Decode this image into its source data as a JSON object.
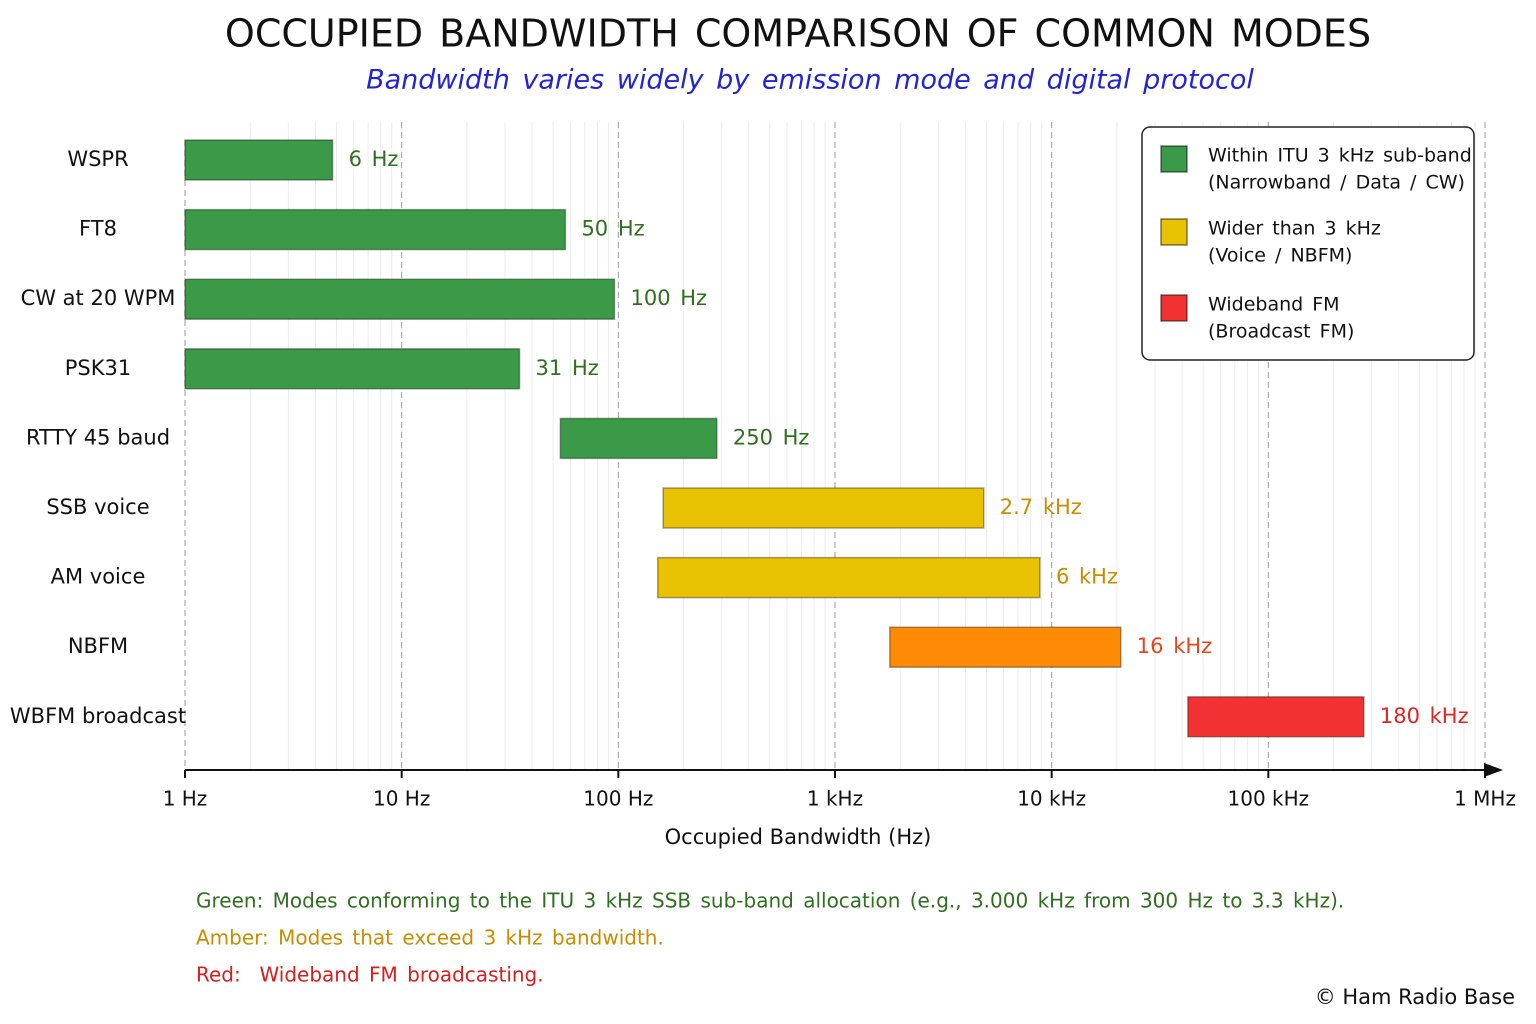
{
  "chart_data": {
    "type": "floating_bar",
    "title": "OCCUPIED BANDWIDTH COMPARISON OF COMMON MODES",
    "subtitle": "Bandwidth varies widely by emission mode and digital protocol",
    "x_label": "Occupied Bandwidth (Hz)",
    "log_x": true,
    "grid": true,
    "categories": [
      "WSPR",
      "FT8",
      "CW at 20 WPM",
      "PSK31",
      "RTTY 45 baud",
      "SSB voice",
      "AM voice",
      "NBFM",
      "WBFM broadcast"
    ],
    "low": [
      1,
      1,
      1,
      1,
      54,
      161,
      152,
      1790,
      42500
    ],
    "high": [
      4.8,
      57,
      96,
      35,
      285,
      4860,
      8830,
      20850,
      276000
    ],
    "values": [
      6,
      50,
      100,
      31,
      250,
      2700,
      6000,
      16000,
      180000
    ],
    "value_labels": [
      "6 Hz",
      "50 Hz",
      "100 Hz",
      "31 Hz",
      "250 Hz",
      "2.7 kHz",
      "6 kHz",
      "16 kHz",
      "180 kHz"
    ],
    "colors": [
      "#3b9a48",
      "#3b9a48",
      "#3b9a48",
      "#3b9a48",
      "#3b9a48",
      "#eac204",
      "#eac204",
      "#ff8a05",
      "#f23232"
    ],
    "label_colors": [
      "#2f6f1f",
      "#2f6f1f",
      "#2f6f1f",
      "#2f6f1f",
      "#2f6f1f",
      "#c98c00",
      "#c98c00",
      "#e8451a",
      "#e02323"
    ],
    "xlim": [
      1,
      1000000
    ],
    "xticks": [
      {
        "value": 1,
        "label": "1 Hz"
      },
      {
        "value": 10,
        "label": "10 Hz"
      },
      {
        "value": 100,
        "label": "100 Hz"
      },
      {
        "value": 1000,
        "label": "1 kHz"
      },
      {
        "value": 10000,
        "label": "10 kHz"
      },
      {
        "value": 100000,
        "label": "100 kHz"
      },
      {
        "value": 1000000,
        "label": "1 MHz"
      }
    ],
    "xticks_minor": [
      2,
      3,
      4,
      5,
      6,
      7,
      8,
      9,
      20,
      30,
      40,
      50,
      60,
      70,
      80,
      90,
      200,
      300,
      400,
      500,
      600,
      700,
      800,
      900,
      2000,
      3000,
      4000,
      5000,
      6000,
      7000,
      8000,
      9000,
      20000,
      30000,
      40000,
      50000,
      60000,
      70000,
      80000,
      90000,
      200000,
      300000,
      400000,
      500000,
      600000,
      700000,
      800000,
      900000
    ],
    "legend": {
      "position": "upper right",
      "entries": [
        {
          "color": "#3b9a48",
          "lines": [
            "Within ITU 3 kHz sub-band",
            "(Narrowband / Data / CW)"
          ]
        },
        {
          "color": "#eac204",
          "lines": [
            "Wider than 3 kHz",
            "(Voice / NBFM)"
          ]
        },
        {
          "color": "#f23232",
          "lines": [
            "Wideband FM",
            "(Broadcast FM)"
          ]
        }
      ]
    },
    "notes": [
      {
        "text": "Green: Modes conforming to the ITU 3 kHz SSB sub-band allocation (e.g., 3.000 kHz from 300 Hz to 3.3 kHz).",
        "color": "#2f6f1f"
      },
      {
        "text": "Amber: Modes that exceed 3 kHz bandwidth.",
        "color": "#c98c00"
      },
      {
        "text": "Red:  Wideband FM broadcasting.",
        "color": "#d91c1c"
      }
    ],
    "source": "© Ham Radio Base"
  }
}
